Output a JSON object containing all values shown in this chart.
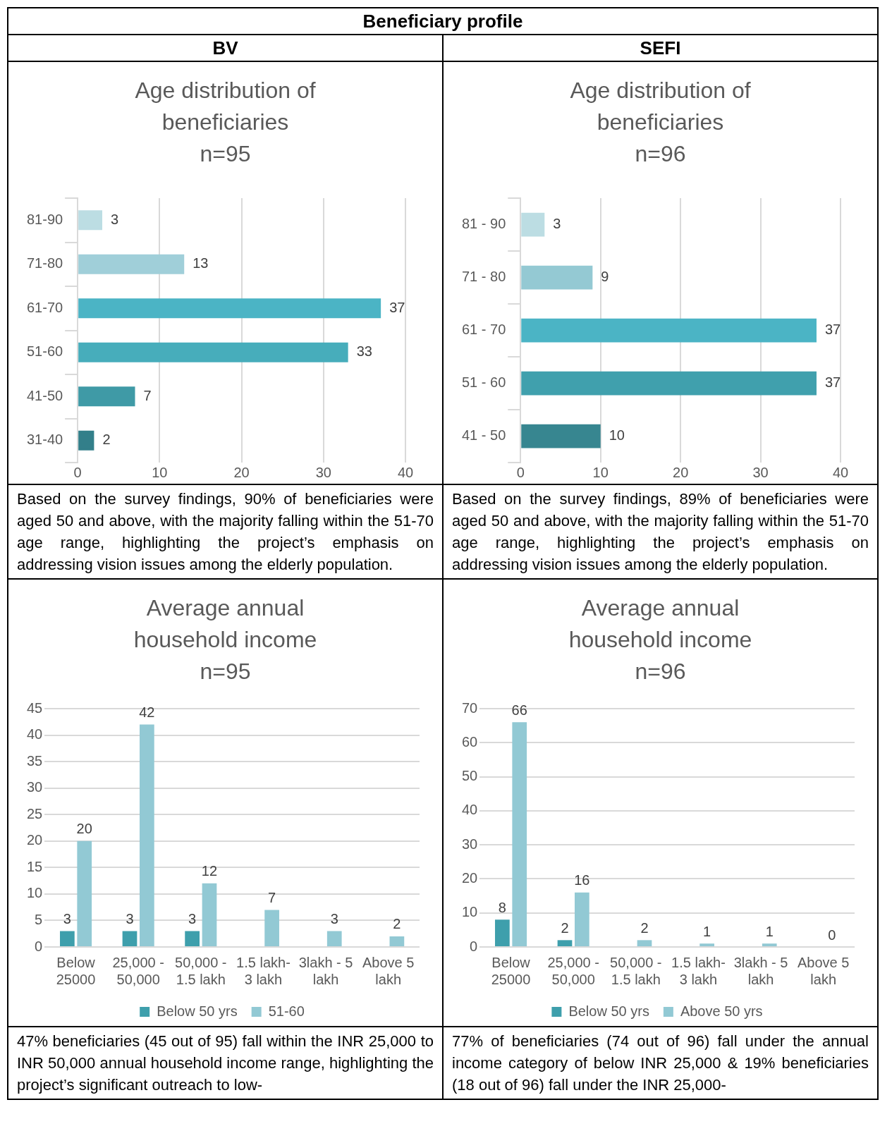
{
  "chart_data": [
    {
      "type": "bar",
      "orientation": "horizontal",
      "title": "Age distribution of beneficiaries",
      "subtitle": "n=95",
      "categories": [
        "81-90",
        "71-80",
        "61-70",
        "51-60",
        "41-50",
        "31-40"
      ],
      "values": [
        3,
        13,
        37,
        33,
        7,
        2
      ],
      "colors": [
        "#bcdde3",
        "#a0cfd9",
        "#4bb4c5",
        "#47adbb",
        "#3f9aa6",
        "#337f8a"
      ],
      "xlim": [
        0,
        40
      ],
      "xticks": [
        0,
        10,
        20,
        30,
        40
      ],
      "grid": "x",
      "data_labels": true,
      "legend": false,
      "annotations": [
        "Beneficiary profile",
        "BV",
        "Based on the survey findings, 90% of beneficiaries were aged 50 and above, with the majority falling within the 51-70 age range, highlighting the project’s emphasis on addressing vision issues among the elderly population."
      ]
    },
    {
      "type": "bar",
      "orientation": "horizontal",
      "title": "Age distribution of beneficiaries",
      "subtitle": "n=96",
      "categories": [
        "81 - 90",
        "71 - 80",
        "61 - 70",
        "51 - 60",
        "41 - 50"
      ],
      "values": [
        3,
        9,
        37,
        37,
        10
      ],
      "colors": [
        "#bcdde3",
        "#94c9d3",
        "#4bb4c5",
        "#40a0ad",
        "#378690"
      ],
      "xlim": [
        0,
        40
      ],
      "xticks": [
        0,
        10,
        20,
        30,
        40
      ],
      "grid": "x",
      "data_labels": true,
      "legend": false,
      "annotations": [
        "SEFI",
        "Based on the survey findings, 89% of beneficiaries were aged 50 and above, with the majority falling within the 51-70 age range, highlighting the project’s emphasis on addressing vision issues among the elderly population."
      ]
    },
    {
      "type": "bar",
      "title": "Average annual household income",
      "subtitle": "n=95",
      "categories": [
        "Below 25000",
        "25,000 - 50,000",
        "50,000 - 1.5 lakh",
        "1.5 lakh- 3 lakh",
        "3lakh - 5 lakh",
        "Above 5 lakh"
      ],
      "series": [
        {
          "name": "Below 50 yrs",
          "color": "#3e9fac",
          "values": [
            3,
            3,
            3,
            null,
            null,
            null
          ]
        },
        {
          "name": "51-60",
          "color": "#92c9d4",
          "values": [
            20,
            42,
            12,
            7,
            3,
            2
          ]
        }
      ],
      "ylim": [
        0,
        45
      ],
      "yticks": [
        0,
        5,
        10,
        15,
        20,
        25,
        30,
        35,
        40,
        45
      ],
      "grid": "y",
      "data_labels": true,
      "legend": "bottom",
      "annotations": [
        "47% beneficiaries (45 out of 95) fall within the INR 25,000 to INR 50,000 annual household income range, highlighting the project’s significant outreach to low-"
      ]
    },
    {
      "type": "bar",
      "title": "Average annual household income",
      "subtitle": "n=96",
      "categories": [
        "Below 25000",
        "25,000 - 50,000",
        "50,000 - 1.5 lakh",
        "1.5 lakh- 3 lakh",
        "3lakh - 5 lakh",
        "Above 5 lakh"
      ],
      "series": [
        {
          "name": "Below 50 yrs",
          "color": "#3e9fac",
          "values": [
            8,
            2,
            null,
            null,
            null,
            null
          ]
        },
        {
          "name": "Above 50 yrs",
          "color": "#92c9d4",
          "values": [
            66,
            16,
            2,
            1,
            1,
            0
          ]
        }
      ],
      "ylim": [
        0,
        70
      ],
      "yticks": [
        0,
        10,
        20,
        30,
        40,
        50,
        60,
        70
      ],
      "grid": "y",
      "data_labels": true,
      "legend": "bottom",
      "annotations": [
        "77% of beneficiaries (74 out of 96) fall under the annual income category of below INR 25,000 & 19% beneficiaries (18 out of 96) fall under the INR 25,000-"
      ]
    }
  ]
}
